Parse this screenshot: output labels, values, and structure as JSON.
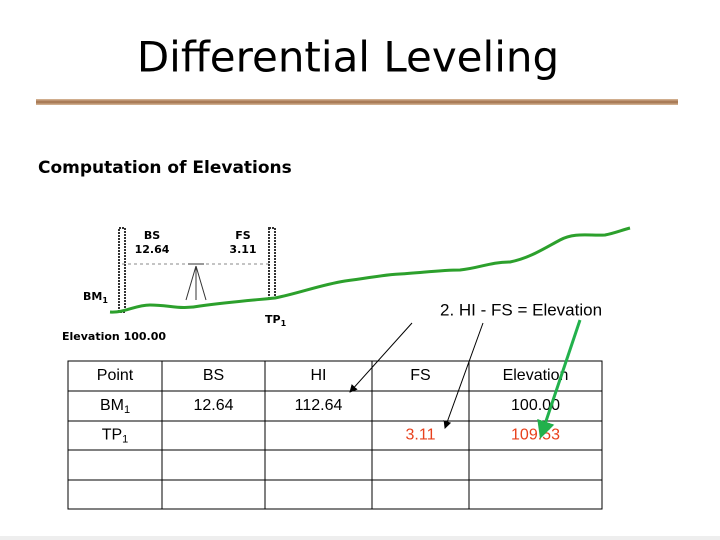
{
  "header": {
    "title": "Differential Leveling",
    "subtitle": "Computation of Elevations"
  },
  "diagram": {
    "backsight": {
      "label": "BS",
      "reading": "12.64"
    },
    "foresight": {
      "label": "FS",
      "reading": "3.11"
    },
    "benchmark": {
      "base": "BM",
      "sub": "1",
      "elevation": "Elevation 100.00"
    },
    "turning_point": {
      "base": "TP",
      "sub": "1"
    },
    "annotation": "2. HI - FS = Elevation"
  },
  "table": {
    "header": [
      "Point",
      "BS",
      "HI",
      "FS",
      "Elevation"
    ],
    "rows": [
      {
        "point": {
          "base": "BM",
          "sub": "1"
        },
        "bs": "12.64",
        "hi": "112.64",
        "elevation": "100.00"
      },
      {
        "point": {
          "base": "TP",
          "sub": "1"
        },
        "fs": "3.11",
        "elevation": "109.53"
      }
    ]
  }
}
